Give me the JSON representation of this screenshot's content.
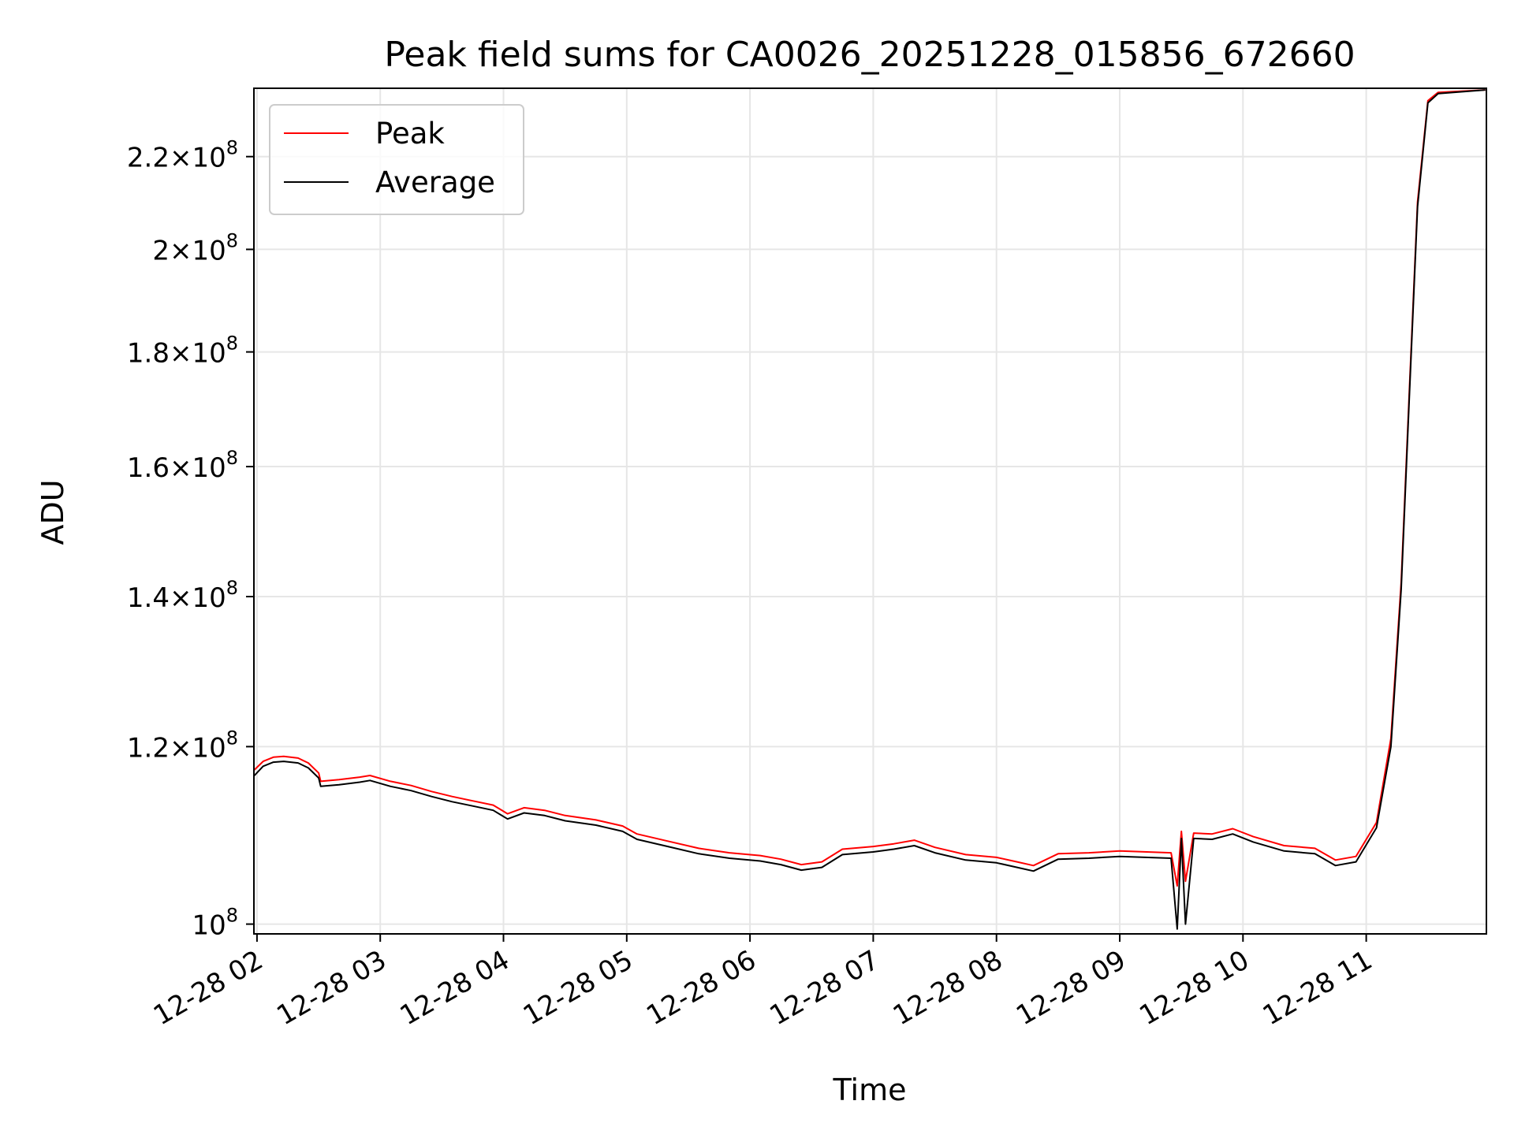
{
  "chart_data": {
    "type": "line",
    "title": "Peak field sums for CA0026_20251228_015856_672660",
    "xlabel": "Time",
    "ylabel": "ADU",
    "y_scale": "log",
    "ylim": [
      99000000,
      236000000
    ],
    "xlim": [
      "2025-12-28T01:58:30",
      "2025-12-28T11:58:30"
    ],
    "grid": true,
    "legend_position": "upper-left",
    "x_ticks": [
      {
        "value": "2025-12-28T02:00",
        "label": "12-28 02"
      },
      {
        "value": "2025-12-28T03:00",
        "label": "12-28 03"
      },
      {
        "value": "2025-12-28T04:00",
        "label": "12-28 04"
      },
      {
        "value": "2025-12-28T05:00",
        "label": "12-28 05"
      },
      {
        "value": "2025-12-28T06:00",
        "label": "12-28 06"
      },
      {
        "value": "2025-12-28T07:00",
        "label": "12-28 07"
      },
      {
        "value": "2025-12-28T08:00",
        "label": "12-28 08"
      },
      {
        "value": "2025-12-28T09:00",
        "label": "12-28 09"
      },
      {
        "value": "2025-12-28T10:00",
        "label": "12-28 10"
      },
      {
        "value": "2025-12-28T11:00",
        "label": "12-28 11"
      }
    ],
    "y_ticks": [
      {
        "value": 100000000,
        "mant": "",
        "exp": "8"
      },
      {
        "value": 120000000,
        "mant": "1.2",
        "exp": "8"
      },
      {
        "value": 140000000,
        "mant": "1.4",
        "exp": "8"
      },
      {
        "value": 160000000,
        "mant": "1.6",
        "exp": "8"
      },
      {
        "value": 180000000,
        "mant": "1.8",
        "exp": "8"
      },
      {
        "value": 200000000,
        "mant": "2",
        "exp": "8"
      },
      {
        "value": 220000000,
        "mant": "2.2",
        "exp": "8"
      }
    ],
    "series": [
      {
        "name": "Peak",
        "color": "#ff0000",
        "points": [
          [
            "2025-12-28T01:58",
            117000000.0
          ],
          [
            "2025-12-28T02:03",
            118200000.0
          ],
          [
            "2025-12-28T02:08",
            118700000.0
          ],
          [
            "2025-12-28T02:13",
            118800000.0
          ],
          [
            "2025-12-28T02:20",
            118600000.0
          ],
          [
            "2025-12-28T02:25",
            118000000.0
          ],
          [
            "2025-12-28T02:30",
            116800000.0
          ],
          [
            "2025-12-28T02:31",
            115800000.0
          ],
          [
            "2025-12-28T02:40",
            116000000.0
          ],
          [
            "2025-12-28T02:50",
            116300000.0
          ],
          [
            "2025-12-28T02:55",
            116500000.0
          ],
          [
            "2025-12-28T03:05",
            115800000.0
          ],
          [
            "2025-12-28T03:15",
            115300000.0
          ],
          [
            "2025-12-28T03:25",
            114600000.0
          ],
          [
            "2025-12-28T03:35",
            114000000.0
          ],
          [
            "2025-12-28T03:45",
            113500000.0
          ],
          [
            "2025-12-28T03:55",
            113000000.0
          ],
          [
            "2025-12-28T04:02",
            112000000.0
          ],
          [
            "2025-12-28T04:10",
            112700000.0
          ],
          [
            "2025-12-28T04:20",
            112400000.0
          ],
          [
            "2025-12-28T04:30",
            111800000.0
          ],
          [
            "2025-12-28T04:45",
            111300000.0
          ],
          [
            "2025-12-28T04:58",
            110600000.0
          ],
          [
            "2025-12-28T05:05",
            109700000.0
          ],
          [
            "2025-12-28T05:20",
            108900000.0
          ],
          [
            "2025-12-28T05:35",
            108100000.0
          ],
          [
            "2025-12-28T05:50",
            107600000.0
          ],
          [
            "2025-12-28T06:05",
            107300000.0
          ],
          [
            "2025-12-28T06:15",
            106900000.0
          ],
          [
            "2025-12-28T06:25",
            106300000.0
          ],
          [
            "2025-12-28T06:35",
            106600000.0
          ],
          [
            "2025-12-28T06:45",
            108000000.0
          ],
          [
            "2025-12-28T07:00",
            108300000.0
          ],
          [
            "2025-12-28T07:10",
            108600000.0
          ],
          [
            "2025-12-28T07:20",
            109000000.0
          ],
          [
            "2025-12-28T07:30",
            108200000.0
          ],
          [
            "2025-12-28T07:45",
            107400000.0
          ],
          [
            "2025-12-28T08:00",
            107100000.0
          ],
          [
            "2025-12-28T08:10",
            106600000.0
          ],
          [
            "2025-12-28T08:18",
            106200000.0
          ],
          [
            "2025-12-28T08:30",
            107500000.0
          ],
          [
            "2025-12-28T08:45",
            107600000.0
          ],
          [
            "2025-12-28T09:00",
            107800000.0
          ],
          [
            "2025-12-28T09:25",
            107600000.0
          ],
          [
            "2025-12-28T09:28",
            104000000.0
          ],
          [
            "2025-12-28T09:30",
            110000000.0
          ],
          [
            "2025-12-28T09:32",
            104500000.0
          ],
          [
            "2025-12-28T09:36",
            109800000.0
          ],
          [
            "2025-12-28T09:45",
            109700000.0
          ],
          [
            "2025-12-28T09:55",
            110300000.0
          ],
          [
            "2025-12-28T10:05",
            109400000.0
          ],
          [
            "2025-12-28T10:20",
            108400000.0
          ],
          [
            "2025-12-28T10:35",
            108100000.0
          ],
          [
            "2025-12-28T10:45",
            106800000.0
          ],
          [
            "2025-12-28T10:55",
            107200000.0
          ],
          [
            "2025-12-28T11:05",
            111000000.0
          ],
          [
            "2025-12-28T11:12",
            121000000.0
          ],
          [
            "2025-12-28T11:17",
            142000000.0
          ],
          [
            "2025-12-28T11:21",
            173000000.0
          ],
          [
            "2025-12-28T11:25",
            210000000.0
          ],
          [
            "2025-12-28T11:30",
            233000000.0
          ],
          [
            "2025-12-28T11:35",
            235000000.0
          ],
          [
            "2025-12-28T11:58",
            235600000.0
          ]
        ]
      },
      {
        "name": "Average",
        "color": "#000000",
        "points": [
          [
            "2025-12-28T01:58",
            116300000.0
          ],
          [
            "2025-12-28T02:03",
            117600000.0
          ],
          [
            "2025-12-28T02:08",
            118100000.0
          ],
          [
            "2025-12-28T02:13",
            118200000.0
          ],
          [
            "2025-12-28T02:20",
            118000000.0
          ],
          [
            "2025-12-28T02:25",
            117400000.0
          ],
          [
            "2025-12-28T02:30",
            116200000.0
          ],
          [
            "2025-12-28T02:31",
            115200000.0
          ],
          [
            "2025-12-28T02:40",
            115400000.0
          ],
          [
            "2025-12-28T02:50",
            115700000.0
          ],
          [
            "2025-12-28T02:55",
            115900000.0
          ],
          [
            "2025-12-28T03:05",
            115200000.0
          ],
          [
            "2025-12-28T03:15",
            114700000.0
          ],
          [
            "2025-12-28T03:25",
            114000000.0
          ],
          [
            "2025-12-28T03:35",
            113400000.0
          ],
          [
            "2025-12-28T03:45",
            112900000.0
          ],
          [
            "2025-12-28T03:55",
            112400000.0
          ],
          [
            "2025-12-28T04:02",
            111400000.0
          ],
          [
            "2025-12-28T04:10",
            112100000.0
          ],
          [
            "2025-12-28T04:20",
            111800000.0
          ],
          [
            "2025-12-28T04:30",
            111200000.0
          ],
          [
            "2025-12-28T04:45",
            110700000.0
          ],
          [
            "2025-12-28T04:58",
            110000000.0
          ],
          [
            "2025-12-28T05:05",
            109100000.0
          ],
          [
            "2025-12-28T05:20",
            108300000.0
          ],
          [
            "2025-12-28T05:35",
            107500000.0
          ],
          [
            "2025-12-28T05:50",
            107000000.0
          ],
          [
            "2025-12-28T06:05",
            106700000.0
          ],
          [
            "2025-12-28T06:15",
            106300000.0
          ],
          [
            "2025-12-28T06:25",
            105700000.0
          ],
          [
            "2025-12-28T06:35",
            106000000.0
          ],
          [
            "2025-12-28T06:45",
            107400000.0
          ],
          [
            "2025-12-28T07:00",
            107700000.0
          ],
          [
            "2025-12-28T07:10",
            108000000.0
          ],
          [
            "2025-12-28T07:20",
            108400000.0
          ],
          [
            "2025-12-28T07:30",
            107600000.0
          ],
          [
            "2025-12-28T07:45",
            106800000.0
          ],
          [
            "2025-12-28T08:00",
            106500000.0
          ],
          [
            "2025-12-28T08:10",
            106000000.0
          ],
          [
            "2025-12-28T08:18",
            105600000.0
          ],
          [
            "2025-12-28T08:30",
            106900000.0
          ],
          [
            "2025-12-28T08:45",
            107000000.0
          ],
          [
            "2025-12-28T09:00",
            107200000.0
          ],
          [
            "2025-12-28T09:25",
            107000000.0
          ],
          [
            "2025-12-28T09:28",
            99500000.0
          ],
          [
            "2025-12-28T09:30",
            109200000.0
          ],
          [
            "2025-12-28T09:32",
            100000000.0
          ],
          [
            "2025-12-28T09:36",
            109200000.0
          ],
          [
            "2025-12-28T09:45",
            109100000.0
          ],
          [
            "2025-12-28T09:55",
            109700000.0
          ],
          [
            "2025-12-28T10:05",
            108800000.0
          ],
          [
            "2025-12-28T10:20",
            107800000.0
          ],
          [
            "2025-12-28T10:35",
            107500000.0
          ],
          [
            "2025-12-28T10:45",
            106200000.0
          ],
          [
            "2025-12-28T10:55",
            106600000.0
          ],
          [
            "2025-12-28T11:05",
            110400000.0
          ],
          [
            "2025-12-28T11:12",
            120000000.0
          ],
          [
            "2025-12-28T11:17",
            141000000.0
          ],
          [
            "2025-12-28T11:21",
            172000000.0
          ],
          [
            "2025-12-28T11:25",
            209000000.0
          ],
          [
            "2025-12-28T11:30",
            232500000.0
          ],
          [
            "2025-12-28T11:35",
            234700000.0
          ],
          [
            "2025-12-28T11:58",
            235600000.0
          ]
        ]
      }
    ]
  }
}
